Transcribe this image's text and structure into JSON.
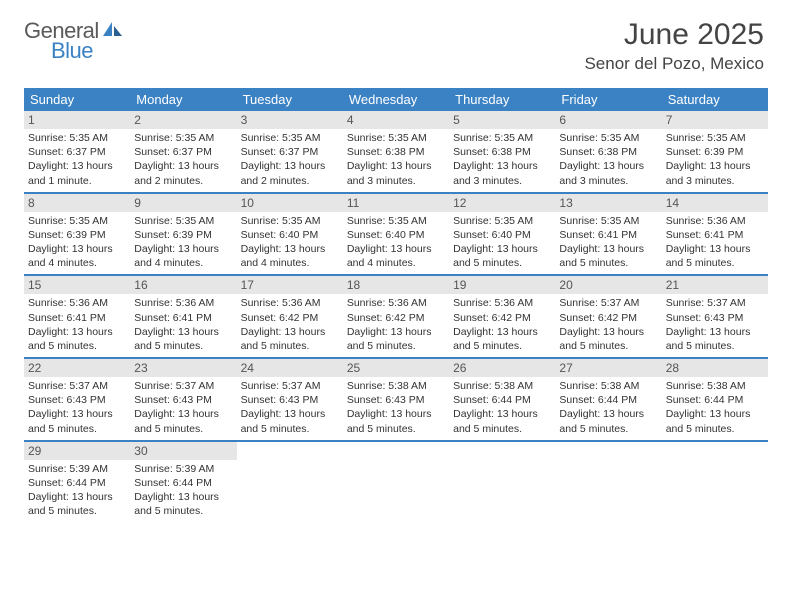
{
  "logo": {
    "general": "General",
    "blue": "Blue"
  },
  "title": "June 2025",
  "location": "Senor del Pozo, Mexico",
  "colors": {
    "brand_blue": "#3b82c4",
    "header_text": "#444444",
    "daynum_bg": "#e6e6e6",
    "text": "#333333"
  },
  "days_of_week": [
    "Sunday",
    "Monday",
    "Tuesday",
    "Wednesday",
    "Thursday",
    "Friday",
    "Saturday"
  ],
  "weeks": [
    [
      {
        "n": "1",
        "sr": "Sunrise: 5:35 AM",
        "ss": "Sunset: 6:37 PM",
        "dl": "Daylight: 13 hours and 1 minute."
      },
      {
        "n": "2",
        "sr": "Sunrise: 5:35 AM",
        "ss": "Sunset: 6:37 PM",
        "dl": "Daylight: 13 hours and 2 minutes."
      },
      {
        "n": "3",
        "sr": "Sunrise: 5:35 AM",
        "ss": "Sunset: 6:37 PM",
        "dl": "Daylight: 13 hours and 2 minutes."
      },
      {
        "n": "4",
        "sr": "Sunrise: 5:35 AM",
        "ss": "Sunset: 6:38 PM",
        "dl": "Daylight: 13 hours and 3 minutes."
      },
      {
        "n": "5",
        "sr": "Sunrise: 5:35 AM",
        "ss": "Sunset: 6:38 PM",
        "dl": "Daylight: 13 hours and 3 minutes."
      },
      {
        "n": "6",
        "sr": "Sunrise: 5:35 AM",
        "ss": "Sunset: 6:38 PM",
        "dl": "Daylight: 13 hours and 3 minutes."
      },
      {
        "n": "7",
        "sr": "Sunrise: 5:35 AM",
        "ss": "Sunset: 6:39 PM",
        "dl": "Daylight: 13 hours and 3 minutes."
      }
    ],
    [
      {
        "n": "8",
        "sr": "Sunrise: 5:35 AM",
        "ss": "Sunset: 6:39 PM",
        "dl": "Daylight: 13 hours and 4 minutes."
      },
      {
        "n": "9",
        "sr": "Sunrise: 5:35 AM",
        "ss": "Sunset: 6:39 PM",
        "dl": "Daylight: 13 hours and 4 minutes."
      },
      {
        "n": "10",
        "sr": "Sunrise: 5:35 AM",
        "ss": "Sunset: 6:40 PM",
        "dl": "Daylight: 13 hours and 4 minutes."
      },
      {
        "n": "11",
        "sr": "Sunrise: 5:35 AM",
        "ss": "Sunset: 6:40 PM",
        "dl": "Daylight: 13 hours and 4 minutes."
      },
      {
        "n": "12",
        "sr": "Sunrise: 5:35 AM",
        "ss": "Sunset: 6:40 PM",
        "dl": "Daylight: 13 hours and 5 minutes."
      },
      {
        "n": "13",
        "sr": "Sunrise: 5:35 AM",
        "ss": "Sunset: 6:41 PM",
        "dl": "Daylight: 13 hours and 5 minutes."
      },
      {
        "n": "14",
        "sr": "Sunrise: 5:36 AM",
        "ss": "Sunset: 6:41 PM",
        "dl": "Daylight: 13 hours and 5 minutes."
      }
    ],
    [
      {
        "n": "15",
        "sr": "Sunrise: 5:36 AM",
        "ss": "Sunset: 6:41 PM",
        "dl": "Daylight: 13 hours and 5 minutes."
      },
      {
        "n": "16",
        "sr": "Sunrise: 5:36 AM",
        "ss": "Sunset: 6:41 PM",
        "dl": "Daylight: 13 hours and 5 minutes."
      },
      {
        "n": "17",
        "sr": "Sunrise: 5:36 AM",
        "ss": "Sunset: 6:42 PM",
        "dl": "Daylight: 13 hours and 5 minutes."
      },
      {
        "n": "18",
        "sr": "Sunrise: 5:36 AM",
        "ss": "Sunset: 6:42 PM",
        "dl": "Daylight: 13 hours and 5 minutes."
      },
      {
        "n": "19",
        "sr": "Sunrise: 5:36 AM",
        "ss": "Sunset: 6:42 PM",
        "dl": "Daylight: 13 hours and 5 minutes."
      },
      {
        "n": "20",
        "sr": "Sunrise: 5:37 AM",
        "ss": "Sunset: 6:42 PM",
        "dl": "Daylight: 13 hours and 5 minutes."
      },
      {
        "n": "21",
        "sr": "Sunrise: 5:37 AM",
        "ss": "Sunset: 6:43 PM",
        "dl": "Daylight: 13 hours and 5 minutes."
      }
    ],
    [
      {
        "n": "22",
        "sr": "Sunrise: 5:37 AM",
        "ss": "Sunset: 6:43 PM",
        "dl": "Daylight: 13 hours and 5 minutes."
      },
      {
        "n": "23",
        "sr": "Sunrise: 5:37 AM",
        "ss": "Sunset: 6:43 PM",
        "dl": "Daylight: 13 hours and 5 minutes."
      },
      {
        "n": "24",
        "sr": "Sunrise: 5:37 AM",
        "ss": "Sunset: 6:43 PM",
        "dl": "Daylight: 13 hours and 5 minutes."
      },
      {
        "n": "25",
        "sr": "Sunrise: 5:38 AM",
        "ss": "Sunset: 6:43 PM",
        "dl": "Daylight: 13 hours and 5 minutes."
      },
      {
        "n": "26",
        "sr": "Sunrise: 5:38 AM",
        "ss": "Sunset: 6:44 PM",
        "dl": "Daylight: 13 hours and 5 minutes."
      },
      {
        "n": "27",
        "sr": "Sunrise: 5:38 AM",
        "ss": "Sunset: 6:44 PM",
        "dl": "Daylight: 13 hours and 5 minutes."
      },
      {
        "n": "28",
        "sr": "Sunrise: 5:38 AM",
        "ss": "Sunset: 6:44 PM",
        "dl": "Daylight: 13 hours and 5 minutes."
      }
    ],
    [
      {
        "n": "29",
        "sr": "Sunrise: 5:39 AM",
        "ss": "Sunset: 6:44 PM",
        "dl": "Daylight: 13 hours and 5 minutes."
      },
      {
        "n": "30",
        "sr": "Sunrise: 5:39 AM",
        "ss": "Sunset: 6:44 PM",
        "dl": "Daylight: 13 hours and 5 minutes."
      },
      {
        "empty": true
      },
      {
        "empty": true
      },
      {
        "empty": true
      },
      {
        "empty": true
      },
      {
        "empty": true
      }
    ]
  ]
}
